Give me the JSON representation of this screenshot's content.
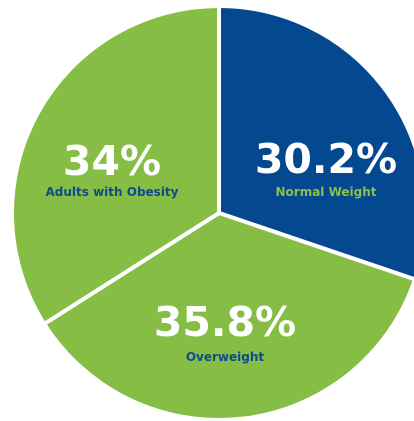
{
  "chart_data": {
    "type": "pie",
    "slices": [
      {
        "label": "Normal Weight",
        "value": 30.2,
        "value_label": "30.2%",
        "color": "#04488f",
        "label_color": "#8cc04b"
      },
      {
        "label": "Overweight",
        "value": 35.8,
        "value_label": "35.8%",
        "color": "#86bd45",
        "label_color": "#0f4a8c"
      },
      {
        "label": "Adults with Obesity",
        "value": 34,
        "value_label": "34%",
        "color": "#86bd45",
        "label_color": "#0f4a8c"
      }
    ],
    "start_angle_deg": 0,
    "direction": "clockwise",
    "slice_separator_color": "#ffffff"
  }
}
